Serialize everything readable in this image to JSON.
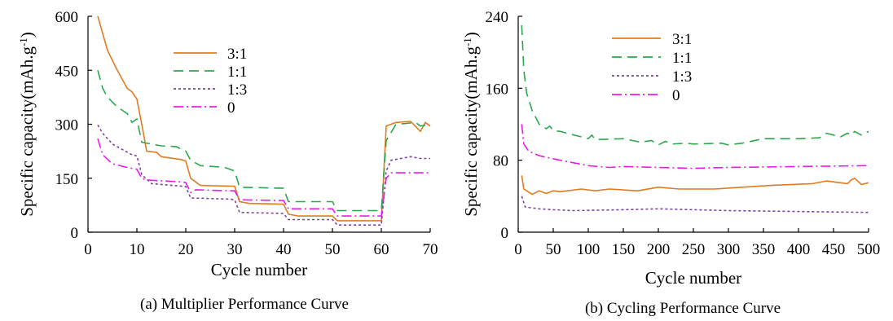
{
  "chart_data": [
    {
      "type": "line",
      "caption": "(a) Multiplier Performance Curve",
      "xlabel": "Cycle number",
      "ylabel": "Specific capacity(mAh.g",
      "ylabel_sup": "-1",
      "ylabel_close": ")",
      "xlim": [
        0,
        70
      ],
      "ylim": [
        0,
        600
      ],
      "xticks": [
        0,
        10,
        20,
        30,
        40,
        50,
        60,
        70
      ],
      "yticks": [
        0,
        150,
        300,
        450,
        600
      ],
      "legend_position": "top-center",
      "series": [
        {
          "name": "3:1",
          "color": "#E07B20",
          "dash": "solid",
          "points": [
            [
              2,
              600
            ],
            [
              4,
              505
            ],
            [
              6,
              450
            ],
            [
              8,
              400
            ],
            [
              9,
              390
            ],
            [
              10,
              370
            ],
            [
              11,
              300
            ],
            [
              12,
              225
            ],
            [
              14,
              222
            ],
            [
              15,
              210
            ],
            [
              19,
              202
            ],
            [
              20,
              198
            ],
            [
              21,
              150
            ],
            [
              23,
              130
            ],
            [
              30,
              128
            ],
            [
              31,
              85
            ],
            [
              33,
              80
            ],
            [
              40,
              78
            ],
            [
              41,
              50
            ],
            [
              43,
              45
            ],
            [
              50,
              45
            ],
            [
              51,
              32
            ],
            [
              60,
              32
            ],
            [
              61,
              295
            ],
            [
              63,
              305
            ],
            [
              66,
              308
            ],
            [
              68,
              280
            ],
            [
              69,
              305
            ],
            [
              70,
              295
            ]
          ]
        },
        {
          "name": "1:1",
          "color": "#2BA84A",
          "dash": "12,7",
          "points": [
            [
              2,
              450
            ],
            [
              3,
              400
            ],
            [
              4,
              375
            ],
            [
              6,
              348
            ],
            [
              8,
              330
            ],
            [
              9,
              305
            ],
            [
              10,
              315
            ],
            [
              11,
              250
            ],
            [
              13,
              245
            ],
            [
              15,
              240
            ],
            [
              18,
              238
            ],
            [
              20,
              225
            ],
            [
              21,
              200
            ],
            [
              23,
              185
            ],
            [
              28,
              180
            ],
            [
              30,
              170
            ],
            [
              31,
              125
            ],
            [
              40,
              122
            ],
            [
              41,
              85
            ],
            [
              50,
              85
            ],
            [
              51,
              60
            ],
            [
              60,
              60
            ],
            [
              61,
              255
            ],
            [
              63,
              300
            ],
            [
              65,
              302
            ],
            [
              67,
              305
            ],
            [
              68,
              295
            ],
            [
              70,
              300
            ]
          ]
        },
        {
          "name": "1:3",
          "color": "#7B3FA8",
          "dash": "3,3",
          "points": [
            [
              2,
              298
            ],
            [
              3,
              275
            ],
            [
              5,
              245
            ],
            [
              7,
              230
            ],
            [
              9,
              215
            ],
            [
              10,
              212
            ],
            [
              11,
              160
            ],
            [
              13,
              135
            ],
            [
              20,
              127
            ],
            [
              21,
              95
            ],
            [
              29,
              92
            ],
            [
              30,
              90
            ],
            [
              31,
              55
            ],
            [
              40,
              52
            ],
            [
              41,
              35
            ],
            [
              50,
              35
            ],
            [
              51,
              20
            ],
            [
              60,
              20
            ],
            [
              61,
              170
            ],
            [
              62,
              200
            ],
            [
              66,
              210
            ],
            [
              68,
              205
            ],
            [
              70,
              205
            ]
          ]
        },
        {
          "name": "0",
          "color": "#E81CE8",
          "dash": "12,4,2,4",
          "points": [
            [
              2,
              260
            ],
            [
              3,
              215
            ],
            [
              5,
              190
            ],
            [
              8,
              180
            ],
            [
              10,
              175
            ],
            [
              11,
              150
            ],
            [
              12,
              145
            ],
            [
              19,
              140
            ],
            [
              20,
              138
            ],
            [
              21,
              110
            ],
            [
              22,
              118
            ],
            [
              29,
              115
            ],
            [
              30,
              115
            ],
            [
              31,
              90
            ],
            [
              40,
              88
            ],
            [
              41,
              65
            ],
            [
              50,
              65
            ],
            [
              51,
              45
            ],
            [
              60,
              45
            ],
            [
              61,
              150
            ],
            [
              62,
              165
            ],
            [
              70,
              165
            ]
          ]
        }
      ]
    },
    {
      "type": "line",
      "caption": "(b) Cycling Performance Curve",
      "xlabel": "Cycle number",
      "ylabel": "Specific capacity(mAh.g",
      "ylabel_sup": "-1",
      "ylabel_close": ")",
      "xlim": [
        0,
        500
      ],
      "ylim": [
        0,
        240
      ],
      "xticks": [
        0,
        50,
        100,
        150,
        200,
        250,
        300,
        350,
        400,
        450,
        500
      ],
      "yticks": [
        0,
        80,
        160,
        240
      ],
      "legend_position": "top-center",
      "series": [
        {
          "name": "3:1",
          "color": "#E07B20",
          "dash": "solid",
          "points": [
            [
              5,
              63
            ],
            [
              8,
              48
            ],
            [
              20,
              42
            ],
            [
              30,
              46
            ],
            [
              40,
              43
            ],
            [
              50,
              46
            ],
            [
              60,
              45
            ],
            [
              90,
              48
            ],
            [
              110,
              46
            ],
            [
              130,
              48
            ],
            [
              170,
              46
            ],
            [
              200,
              50
            ],
            [
              230,
              48
            ],
            [
              250,
              48
            ],
            [
              280,
              48
            ],
            [
              320,
              50
            ],
            [
              360,
              52
            ],
            [
              420,
              54
            ],
            [
              440,
              57
            ],
            [
              470,
              54
            ],
            [
              475,
              58
            ],
            [
              480,
              60
            ],
            [
              490,
              53
            ],
            [
              500,
              55
            ]
          ]
        },
        {
          "name": "1:1",
          "color": "#2BA84A",
          "dash": "12,7",
          "points": [
            [
              5,
              230
            ],
            [
              8,
              180
            ],
            [
              12,
              155
            ],
            [
              20,
              135
            ],
            [
              30,
              120
            ],
            [
              40,
              115
            ],
            [
              45,
              118
            ],
            [
              50,
              113
            ],
            [
              60,
              112
            ],
            [
              80,
              108
            ],
            [
              90,
              106
            ],
            [
              100,
              104
            ],
            [
              105,
              108
            ],
            [
              110,
              103
            ],
            [
              150,
              104
            ],
            [
              175,
              100
            ],
            [
              190,
              102
            ],
            [
              200,
              97
            ],
            [
              210,
              101
            ],
            [
              220,
              98
            ],
            [
              240,
              99
            ],
            [
              250,
              98
            ],
            [
              290,
              99
            ],
            [
              300,
              97
            ],
            [
              320,
              99
            ],
            [
              350,
              104
            ],
            [
              400,
              104
            ],
            [
              430,
              105
            ],
            [
              440,
              110
            ],
            [
              460,
              106
            ],
            [
              470,
              110
            ],
            [
              475,
              108
            ],
            [
              480,
              112
            ],
            [
              490,
              108
            ],
            [
              500,
              112
            ]
          ]
        },
        {
          "name": "1:3",
          "color": "#7B3FA8",
          "dash": "3,3",
          "points": [
            [
              5,
              40
            ],
            [
              10,
              28
            ],
            [
              30,
              26
            ],
            [
              50,
              25
            ],
            [
              80,
              24
            ],
            [
              150,
              25
            ],
            [
              200,
              26
            ],
            [
              250,
              25
            ],
            [
              300,
              24
            ],
            [
              400,
              23
            ],
            [
              500,
              22
            ]
          ]
        },
        {
          "name": "0",
          "color": "#E81CE8",
          "dash": "12,4,2,4",
          "points": [
            [
              5,
              120
            ],
            [
              8,
              98
            ],
            [
              15,
              90
            ],
            [
              30,
              85
            ],
            [
              60,
              80
            ],
            [
              100,
              74
            ],
            [
              130,
              72
            ],
            [
              150,
              73
            ],
            [
              200,
              72
            ],
            [
              250,
              71
            ],
            [
              300,
              72
            ],
            [
              400,
              73
            ],
            [
              500,
              74
            ]
          ]
        }
      ]
    }
  ]
}
